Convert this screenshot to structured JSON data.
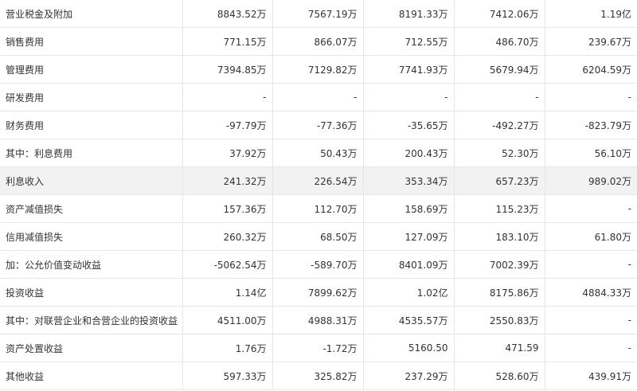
{
  "table": {
    "rows": [
      {
        "label": "营业税金及附加",
        "values": [
          "8843.52万",
          "7567.19万",
          "8191.33万",
          "7412.06万",
          "1.19亿"
        ]
      },
      {
        "label": "销售费用",
        "values": [
          "771.15万",
          "866.07万",
          "712.55万",
          "486.70万",
          "239.67万"
        ]
      },
      {
        "label": "管理费用",
        "values": [
          "7394.85万",
          "7129.82万",
          "7741.93万",
          "5679.94万",
          "6204.59万"
        ]
      },
      {
        "label": "研发费用",
        "values": [
          "-",
          "-",
          "-",
          "-",
          "-"
        ]
      },
      {
        "label": "财务费用",
        "values": [
          "-97.79万",
          "-77.36万",
          "-35.65万",
          "-492.27万",
          "-823.79万"
        ]
      },
      {
        "label": "其中：利息费用",
        "values": [
          "37.92万",
          "50.43万",
          "200.43万",
          "52.30万",
          "56.10万"
        ]
      },
      {
        "label": "利息收入",
        "values": [
          "241.32万",
          "226.54万",
          "353.34万",
          "657.23万",
          "989.02万"
        ]
      },
      {
        "label": "资产减值损失",
        "values": [
          "157.36万",
          "112.70万",
          "158.69万",
          "115.23万",
          "-"
        ]
      },
      {
        "label": "信用减值损失",
        "values": [
          "260.32万",
          "68.50万",
          "127.09万",
          "183.10万",
          "61.80万"
        ]
      },
      {
        "label": "加：公允价值变动收益",
        "values": [
          "-5062.54万",
          "-589.70万",
          "8401.09万",
          "7002.39万",
          "-"
        ]
      },
      {
        "label": "投资收益",
        "values": [
          "1.14亿",
          "7899.62万",
          "1.02亿",
          "8175.86万",
          "4884.33万"
        ]
      },
      {
        "label": "其中：对联营企业和合营企业的投资收益",
        "values": [
          "4511.00万",
          "4988.31万",
          "4535.57万",
          "2550.83万",
          "-"
        ]
      },
      {
        "label": "资产处置收益",
        "values": [
          "1.76万",
          "-1.72万",
          "5160.50",
          "471.59",
          "-"
        ]
      },
      {
        "label": "其他收益",
        "values": [
          "597.33万",
          "325.82万",
          "237.29万",
          "528.60万",
          "439.91万"
        ]
      }
    ],
    "highlighted_row": 6
  }
}
